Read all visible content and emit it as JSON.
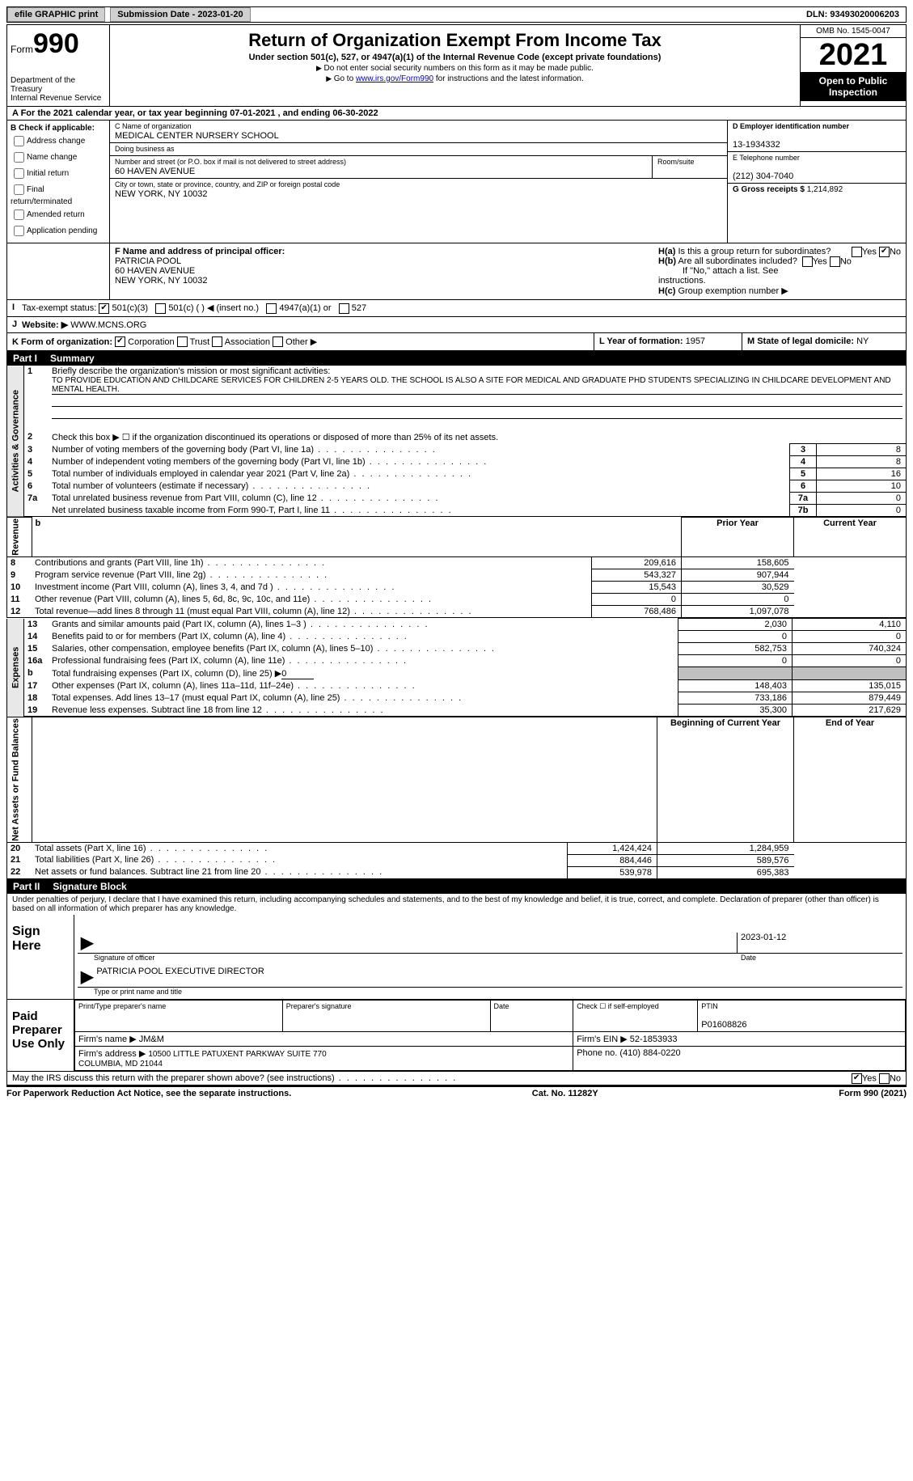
{
  "topbar": {
    "efile_label": "efile GRAPHIC print",
    "submission_label": "Submission Date - 2023-01-20",
    "dln_label": "DLN: 93493020006203"
  },
  "header": {
    "form_label": "Form",
    "form_number": "990",
    "dept": "Department of the Treasury\nInternal Revenue Service",
    "title": "Return of Organization Exempt From Income Tax",
    "subtitle": "Under section 501(c), 527, or 4947(a)(1) of the Internal Revenue Code (except private foundations)",
    "note1": "Do not enter social security numbers on this form as it may be made public.",
    "note2_pre": "Go to ",
    "note2_link": "www.irs.gov/Form990",
    "note2_post": " for instructions and the latest information.",
    "omb": "OMB No. 1545-0047",
    "year": "2021",
    "open_public": "Open to Public Inspection"
  },
  "sectionA": "A For the 2021 calendar year, or tax year beginning 07-01-2021    , and ending 06-30-2022",
  "sectionB": {
    "title": "B Check if applicable:",
    "items": [
      "Address change",
      "Name change",
      "Initial return",
      "Final return/terminated",
      "Amended return",
      "Application pending"
    ]
  },
  "sectionC": {
    "name_lbl": "C Name of organization",
    "name": "MEDICAL CENTER NURSERY SCHOOL",
    "dba_lbl": "Doing business as",
    "dba": "",
    "addr_lbl": "Number and street (or P.O. box if mail is not delivered to street address)",
    "addr": "60 HAVEN AVENUE",
    "room_lbl": "Room/suite",
    "city_lbl": "City or town, state or province, country, and ZIP or foreign postal code",
    "city": "NEW YORK, NY  10032"
  },
  "sectionD": {
    "ein_lbl": "D Employer identification number",
    "ein": "13-1934332",
    "tel_lbl": "E Telephone number",
    "tel": "(212) 304-7040",
    "gross_lbl": "G Gross receipts $",
    "gross": "1,214,892"
  },
  "sectionF": {
    "lbl": "F Name and address of principal officer:",
    "name": "PATRICIA POOL",
    "addr1": "60 HAVEN AVENUE",
    "addr2": "NEW YORK, NY  10032"
  },
  "sectionH": {
    "a": "Is this a group return for subordinates?",
    "b": "Are all subordinates included?",
    "b_note": "If \"No,\" attach a list. See instructions.",
    "c": "Group exemption number ▶",
    "yes": "Yes",
    "no": "No"
  },
  "sectionI": {
    "lbl": "Tax-exempt status:",
    "opt1": "501(c)(3)",
    "opt2": "501(c) (  ) ◀ (insert no.)",
    "opt3": "4947(a)(1) or",
    "opt4": "527"
  },
  "sectionJ": {
    "lbl": "Website: ▶",
    "val": "WWW.MCNS.ORG"
  },
  "sectionK": {
    "lbl": "K Form of organization:",
    "opts": [
      "Corporation",
      "Trust",
      "Association",
      "Other ▶"
    ],
    "L_lbl": "L Year of formation:",
    "L_val": "1957",
    "M_lbl": "M State of legal domicile:",
    "M_val": "NY"
  },
  "part1": {
    "hdr_num": "Part I",
    "hdr_title": "Summary",
    "side_activities": "Activities & Governance",
    "side_revenue": "Revenue",
    "side_expenses": "Expenses",
    "side_netassets": "Net Assets or Fund Balances",
    "line1_lbl": "Briefly describe the organization's mission or most significant activities:",
    "line1_val": "TO PROVIDE EDUCATION AND CHILDCARE SERVICES FOR CHILDREN 2-5 YEARS OLD. THE SCHOOL IS ALSO A SITE FOR MEDICAL AND GRADUATE PHD STUDENTS SPECIALIZING IN CHILDCARE DEVELOPMENT AND MENTAL HEALTH.",
    "line2": "Check this box ▶ ☐ if the organization discontinued its operations or disposed of more than 25% of its net assets.",
    "lines": [
      {
        "n": "3",
        "t": "Number of voting members of the governing body (Part VI, line 1a)",
        "box": "3",
        "v": "8"
      },
      {
        "n": "4",
        "t": "Number of independent voting members of the governing body (Part VI, line 1b)",
        "box": "4",
        "v": "8"
      },
      {
        "n": "5",
        "t": "Total number of individuals employed in calendar year 2021 (Part V, line 2a)",
        "box": "5",
        "v": "16"
      },
      {
        "n": "6",
        "t": "Total number of volunteers (estimate if necessary)",
        "box": "6",
        "v": "10"
      },
      {
        "n": "7a",
        "t": "Total unrelated business revenue from Part VIII, column (C), line 12",
        "box": "7a",
        "v": "0"
      },
      {
        "n": "",
        "t": "Net unrelated business taxable income from Form 990-T, Part I, line 11",
        "box": "7b",
        "v": "0"
      }
    ],
    "col_prior": "Prior Year",
    "col_current": "Current Year",
    "col_beginning": "Beginning of Current Year",
    "col_end": "End of Year",
    "rev_lines": [
      {
        "n": "8",
        "t": "Contributions and grants (Part VIII, line 1h)",
        "p": "209,616",
        "c": "158,605"
      },
      {
        "n": "9",
        "t": "Program service revenue (Part VIII, line 2g)",
        "p": "543,327",
        "c": "907,944"
      },
      {
        "n": "10",
        "t": "Investment income (Part VIII, column (A), lines 3, 4, and 7d )",
        "p": "15,543",
        "c": "30,529"
      },
      {
        "n": "11",
        "t": "Other revenue (Part VIII, column (A), lines 5, 6d, 8c, 9c, 10c, and 11e)",
        "p": "0",
        "c": "0"
      },
      {
        "n": "12",
        "t": "Total revenue—add lines 8 through 11 (must equal Part VIII, column (A), line 12)",
        "p": "768,486",
        "c": "1,097,078"
      }
    ],
    "exp_lines": [
      {
        "n": "13",
        "t": "Grants and similar amounts paid (Part IX, column (A), lines 1–3 )",
        "p": "2,030",
        "c": "4,110"
      },
      {
        "n": "14",
        "t": "Benefits paid to or for members (Part IX, column (A), line 4)",
        "p": "0",
        "c": "0"
      },
      {
        "n": "15",
        "t": "Salaries, other compensation, employee benefits (Part IX, column (A), lines 5–10)",
        "p": "582,753",
        "c": "740,324"
      },
      {
        "n": "16a",
        "t": "Professional fundraising fees (Part IX, column (A), line 11e)",
        "p": "0",
        "c": "0"
      }
    ],
    "line16b": "Total fundraising expenses (Part IX, column (D), line 25) ▶",
    "line16b_val": "0",
    "exp_lines2": [
      {
        "n": "17",
        "t": "Other expenses (Part IX, column (A), lines 11a–11d, 11f–24e)",
        "p": "148,403",
        "c": "135,015"
      },
      {
        "n": "18",
        "t": "Total expenses. Add lines 13–17 (must equal Part IX, column (A), line 25)",
        "p": "733,186",
        "c": "879,449"
      },
      {
        "n": "19",
        "t": "Revenue less expenses. Subtract line 18 from line 12",
        "p": "35,300",
        "c": "217,629"
      }
    ],
    "net_lines": [
      {
        "n": "20",
        "t": "Total assets (Part X, line 16)",
        "p": "1,424,424",
        "c": "1,284,959"
      },
      {
        "n": "21",
        "t": "Total liabilities (Part X, line 26)",
        "p": "884,446",
        "c": "589,576"
      },
      {
        "n": "22",
        "t": "Net assets or fund balances. Subtract line 21 from line 20",
        "p": "539,978",
        "c": "695,383"
      }
    ]
  },
  "part2": {
    "hdr_num": "Part II",
    "hdr_title": "Signature Block",
    "penalties": "Under penalties of perjury, I declare that I have examined this return, including accompanying schedules and statements, and to the best of my knowledge and belief, it is true, correct, and complete. Declaration of preparer (other than officer) is based on all information of which preparer has any knowledge.",
    "sign_here": "Sign Here",
    "sig_officer_lbl": "Signature of officer",
    "sig_date_lbl": "Date",
    "sig_date": "2023-01-12",
    "sig_name": "PATRICIA POOL  EXECUTIVE DIRECTOR",
    "sig_name_lbl": "Type or print name and title",
    "paid_prep": "Paid Preparer Use Only",
    "prep_name_lbl": "Print/Type preparer's name",
    "prep_sig_lbl": "Preparer's signature",
    "prep_date_lbl": "Date",
    "prep_self_lbl": "Check ☐ if self-employed",
    "ptin_lbl": "PTIN",
    "ptin": "P01608826",
    "firm_name_lbl": "Firm's name    ▶",
    "firm_name": "JM&M",
    "firm_ein_lbl": "Firm's EIN ▶",
    "firm_ein": "52-1853933",
    "firm_addr_lbl": "Firm's address ▶",
    "firm_addr": "10500 LITTLE PATUXENT PARKWAY SUITE 770\nCOLUMBIA, MD  21044",
    "phone_lbl": "Phone no.",
    "phone": "(410) 884-0220",
    "discuss": "May the IRS discuss this return with the preparer shown above? (see instructions)"
  },
  "footer": {
    "left": "For Paperwork Reduction Act Notice, see the separate instructions.",
    "center": "Cat. No. 11282Y",
    "right": "Form 990 (2021)"
  }
}
